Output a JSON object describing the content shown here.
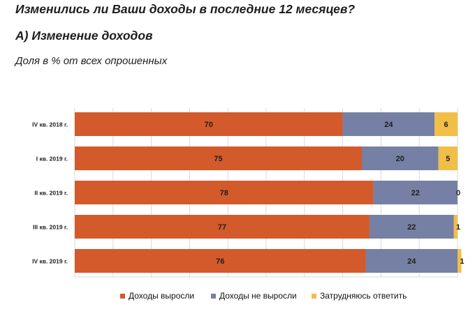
{
  "header": {
    "title": "Изменились ли Ваши доходы в последние 12 месяцев?",
    "subtitle": "А) Изменение доходов",
    "note": "Доля в % от всех опрошенных"
  },
  "colors": {
    "grew": "#d35a2b",
    "not_grew": "#7680a4",
    "hard": "#f1be47",
    "grid": "#d9d9d9"
  },
  "chart_data": {
    "type": "bar",
    "orientation": "horizontal",
    "stacked": true,
    "title": "Изменение доходов",
    "xlim": [
      0,
      100
    ],
    "categories": [
      "IV кв. 2018 г.",
      "I кв. 2019 г.",
      "II кв. 2019 г.",
      "III кв. 2019 г.",
      "IV кв. 2019 г."
    ],
    "series": [
      {
        "name": "Доходы выросли",
        "values": [
          70,
          75,
          78,
          77,
          76
        ]
      },
      {
        "name": "Доходы не выросли",
        "values": [
          24,
          20,
          22,
          22,
          24
        ]
      },
      {
        "name": "Затрудняюсь ответить",
        "values": [
          6,
          5,
          0,
          1,
          1
        ]
      }
    ],
    "legend_position": "bottom"
  },
  "legend": {
    "items": [
      "Доходы выросли",
      "Доходы не выросли",
      "Затрудняюсь ответить"
    ]
  }
}
